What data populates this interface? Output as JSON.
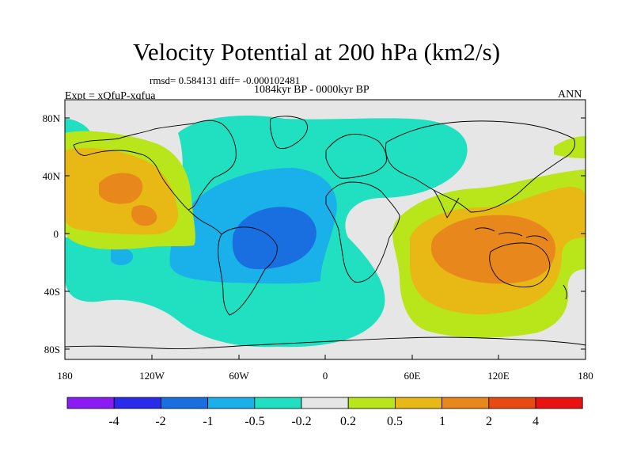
{
  "title": "Velocity Potential at 200 hPa (km2/s)",
  "stats_line": "rmsd= 0.584131 diff= -0.000102481",
  "period": "1084kyr BP - 0000kyr BP",
  "experiment": "Expt = xQfuP-xqfua",
  "season": "ANN",
  "map": {
    "ocean_color": "#e6e6e6",
    "y_ticks": [
      "80N",
      "40N",
      "0",
      "40S",
      "80S"
    ],
    "x_ticks": [
      "180",
      "120W",
      "60W",
      "0",
      "60E",
      "120E",
      "180"
    ]
  },
  "colorbar": {
    "colors": [
      "#8a1bf2",
      "#2a2aeb",
      "#1a6fe0",
      "#1ab0ea",
      "#21e0c1",
      "#e6e6e6",
      "#b8e61a",
      "#e8b814",
      "#e8881c",
      "#e84a14",
      "#e81212"
    ],
    "labels": [
      "-4",
      "-2",
      "-1",
      "-0.5",
      "-0.2",
      "0.2",
      "0.5",
      "1",
      "2",
      "4"
    ]
  }
}
